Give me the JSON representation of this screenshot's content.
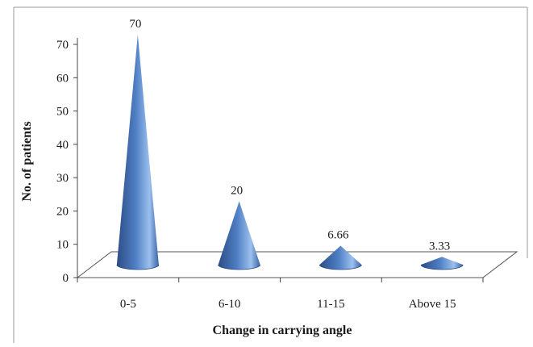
{
  "chart_data": {
    "type": "bar",
    "mark_shape": "3d-cone",
    "categories": [
      "0-5",
      "6-10",
      "11-15",
      "Above 15"
    ],
    "values": [
      70,
      20,
      6.66,
      3.33
    ],
    "data_labels": [
      "70",
      "20",
      "6.66",
      "3.33"
    ],
    "xlabel": "Change in carrying angle",
    "ylabel": "No. of patients",
    "ylim": [
      0,
      70
    ],
    "yticks": [
      0,
      10,
      20,
      30,
      40,
      50,
      60,
      70
    ],
    "grid": false,
    "legend": "none",
    "colors": {
      "cone_dark": "#2c4d86",
      "cone_mid": "#4f7fc4",
      "cone_light": "#9cc0ee",
      "axis": "#333333",
      "floor_fill": "#ffffff"
    }
  }
}
